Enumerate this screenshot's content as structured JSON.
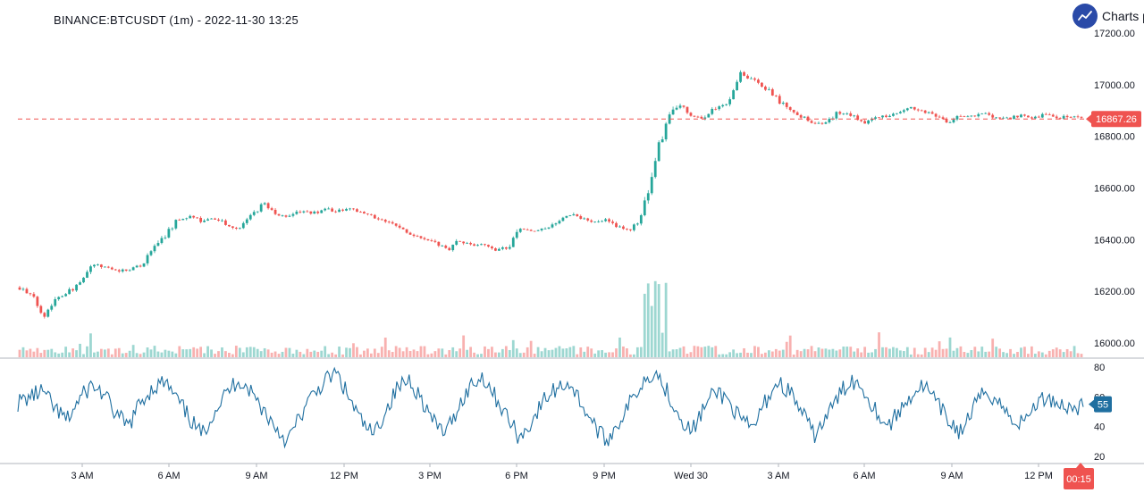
{
  "header": {
    "symbol_title": "BINANCE:BTCUSDT (1m) - 2022-11-30 13:25",
    "brand_text": "Charts p"
  },
  "colors": {
    "up": "#26a69a",
    "down": "#ef5350",
    "last_price_line": "#ef5350",
    "indicator": "#1f6fa0",
    "axis_line": "#b2b5be",
    "brand": "#2a4aa8"
  },
  "icons": {
    "brand_logo": "trend-up-icon"
  },
  "chart_data": [
    {
      "type": "candlestick",
      "title": "BINANCE:BTCUSDT (1m) - 2022-11-30 13:25",
      "x_ticks": [
        "3 AM",
        "6 AM",
        "9 AM",
        "12 PM",
        "3 PM",
        "6 PM",
        "9 PM",
        "Wed 30",
        "3 AM",
        "6 AM",
        "9 AM",
        "12 PM"
      ],
      "y_ticks": [
        "17200.00",
        "17000.00",
        "16800.00",
        "16600.00",
        "16400.00",
        "16200.00",
        "16000.00"
      ],
      "ylim": [
        15950,
        17200
      ],
      "last_price": 16867.26,
      "last_price_label": "16867.26",
      "current_time_label": "00:15",
      "series": [
        {
          "x": [
            "01:00",
            "01:30",
            "02:00",
            "02:30",
            "03:00",
            "03:20",
            "03:40",
            "04:00",
            "04:30",
            "05:00",
            "05:15",
            "05:30",
            "05:45",
            "06:00",
            "06:30",
            "07:00",
            "07:30",
            "08:00",
            "08:30",
            "09:00",
            "09:15",
            "09:30",
            "10:00",
            "10:30",
            "11:00",
            "11:30",
            "12:00",
            "12:30",
            "13:00",
            "13:30",
            "14:00",
            "14:30",
            "15:00",
            "15:30",
            "15:45",
            "16:00",
            "16:30",
            "17:00",
            "17:30",
            "18:00",
            "18:30",
            "19:00",
            "19:30",
            "20:00",
            "20:30",
            "21:00",
            "21:30",
            "22:00",
            "22:30",
            "23:00",
            "23:30",
            "23:50",
            "00:00",
            "00:15",
            "00:20",
            "00:30",
            "00:40",
            "00:50",
            "01:00",
            "01:20",
            "01:40",
            "02:00",
            "02:20",
            "02:40",
            "03:00",
            "03:10",
            "03:20",
            "03:40",
            "04:00",
            "04:30",
            "05:00",
            "05:30",
            "06:00",
            "06:30",
            "07:00",
            "07:30",
            "08:00",
            "08:30",
            "09:00",
            "09:30",
            "10:00",
            "10:30",
            "11:00",
            "11:30",
            "12:00",
            "12:30",
            "13:00",
            "13:25"
          ],
          "close": [
            16215,
            16180,
            16110,
            16175,
            16200,
            16230,
            16305,
            16290,
            16280,
            16285,
            16300,
            16370,
            16420,
            16480,
            16490,
            16470,
            16480,
            16460,
            16440,
            16490,
            16540,
            16500,
            16490,
            16510,
            16500,
            16520,
            16510,
            16520,
            16500,
            16490,
            16470,
            16450,
            16420,
            16410,
            16390,
            16360,
            16400,
            16380,
            16380,
            16360,
            16370,
            16440,
            16430,
            16440,
            16460,
            16500,
            16480,
            16470,
            16480,
            16450,
            16430,
            16490,
            16700,
            16860,
            16930,
            16880,
            16870,
            16910,
            16930,
            17050,
            17020,
            16990,
            16950,
            16900,
            16880,
            16850,
            16850,
            16890,
            16890,
            16850,
            16870,
            16880,
            16890,
            16910,
            16900,
            16880,
            16850,
            16880,
            16880,
            16890,
            16870,
            16870,
            16880,
            16867.26,
            16890,
            16870,
            16880,
            16867.26
          ]
        }
      ],
      "volume_note": "volume bars along bottom of price pane (unlabeled)"
    },
    {
      "type": "line",
      "y_ticks": [
        "80",
        "60",
        "40",
        "20"
      ],
      "ylim": [
        15,
        85
      ],
      "last_value_label": "55",
      "last_value": 55,
      "series": [
        {
          "values": [
            56,
            60,
            64,
            52,
            44,
            58,
            68,
            62,
            48,
            40,
            56,
            66,
            70,
            58,
            46,
            34,
            50,
            62,
            72,
            64,
            52,
            40,
            30,
            46,
            60,
            70,
            76,
            60,
            44,
            34,
            50,
            66,
            72,
            58,
            42,
            36,
            54,
            68,
            74,
            60,
            46,
            32,
            44,
            58,
            66,
            70,
            56,
            42,
            30,
            42,
            56,
            70,
            78,
            64,
            48,
            36,
            52,
            64,
            58,
            44,
            38,
            56,
            70,
            64,
            50,
            34,
            46,
            60,
            72,
            66,
            52,
            40,
            50,
            62,
            68,
            56,
            44,
            36,
            52,
            64,
            58,
            46,
            42,
            54,
            60,
            56,
            52,
            55
          ]
        }
      ]
    }
  ]
}
